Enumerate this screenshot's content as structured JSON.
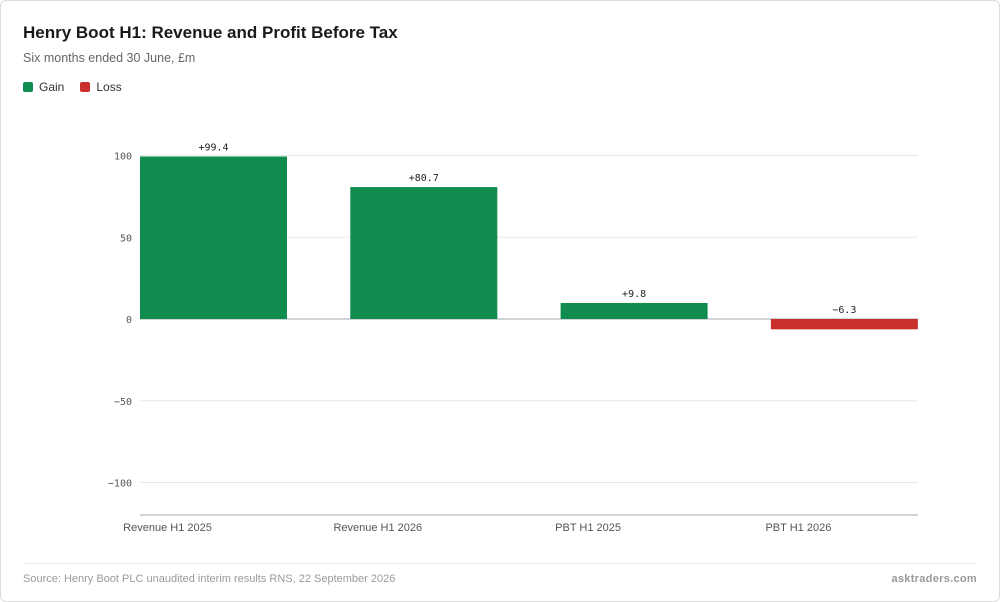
{
  "header": {
    "title": "Henry Boot H1: Revenue and Profit Before Tax",
    "subtitle": "Six months ended 30 June, £m"
  },
  "legend": {
    "gain_label": "Gain",
    "loss_label": "Loss"
  },
  "colors": {
    "gain": "#118c4f",
    "loss": "#c9302c",
    "grid": "#e8e8e8",
    "zero_line": "#bfc5cc",
    "axis_text": "#555555"
  },
  "chart_data": {
    "type": "bar",
    "categories": [
      "Revenue H1 2025",
      "Revenue H1 2026",
      "PBT H1 2025",
      "PBT H1 2026"
    ],
    "values": [
      99.4,
      80.7,
      9.8,
      -6.3
    ],
    "data_labels": [
      "+99.4",
      "+80.7",
      "+9.8",
      "−6.3"
    ],
    "y_ticks": [
      100,
      50,
      0,
      -50,
      -100
    ],
    "y_tick_labels": [
      "100",
      "50",
      "0",
      "−50",
      "−100"
    ],
    "ylim": [
      -120,
      100
    ],
    "grid": true,
    "legend_position": "top-left"
  },
  "footer": {
    "source": "Source: Henry Boot PLC unaudited interim results RNS, 22 September 2026",
    "brand": "asktraders.com"
  }
}
